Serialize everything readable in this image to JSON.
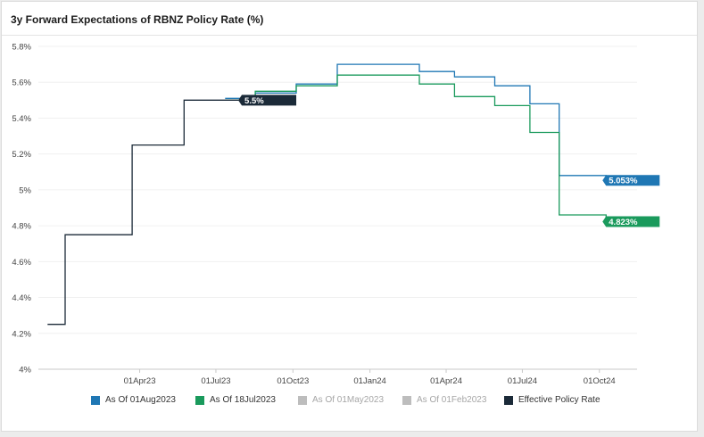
{
  "chart_data": {
    "type": "line",
    "step": true,
    "title": "3y Forward Expectations of RBNZ Policy Rate (%)",
    "xlabel": "",
    "ylabel": "",
    "ylim": [
      4.0,
      5.8
    ],
    "yticks": [
      "5.8%",
      "5.6%",
      "5.4%",
      "5.2%",
      "5%",
      "4.8%",
      "4.6%",
      "4.4%",
      "4.2%",
      "4%"
    ],
    "ytick_values": [
      5.8,
      5.6,
      5.4,
      5.2,
      5.0,
      4.8,
      4.6,
      4.4,
      4.2,
      4.0
    ],
    "xlim": [
      "2022-12-01",
      "2024-11-15"
    ],
    "xticks": [
      "01Apr23",
      "01Jul23",
      "01Oct23",
      "01Jan24",
      "01Apr24",
      "01Jul24",
      "01Oct24"
    ],
    "xtick_dates": [
      "2023-04-01",
      "2023-07-01",
      "2023-10-01",
      "2024-01-01",
      "2024-04-01",
      "2024-07-01",
      "2024-10-01"
    ],
    "grid": "horizontal",
    "series": [
      {
        "name": "As Of 01Aug2023",
        "color": "#1f77b4",
        "visible": true,
        "end_label": "5.053%",
        "points": [
          [
            "2023-07-12",
            5.51
          ],
          [
            "2023-08-17",
            5.54
          ],
          [
            "2023-10-05",
            5.59
          ],
          [
            "2023-11-23",
            5.7
          ],
          [
            "2024-02-29",
            5.66
          ],
          [
            "2024-04-11",
            5.63
          ],
          [
            "2024-05-29",
            5.58
          ],
          [
            "2024-07-10",
            5.48
          ],
          [
            "2024-08-14",
            5.08
          ],
          [
            "2024-10-09",
            5.053
          ],
          [
            "2024-11-12",
            5.053
          ]
        ]
      },
      {
        "name": "As Of 18Jul2023",
        "color": "#1a9a5c",
        "visible": true,
        "end_label": "4.823%",
        "points": [
          [
            "2023-07-12",
            5.5
          ],
          [
            "2023-08-17",
            5.55
          ],
          [
            "2023-10-05",
            5.58
          ],
          [
            "2023-11-23",
            5.64
          ],
          [
            "2024-02-29",
            5.59
          ],
          [
            "2024-04-11",
            5.52
          ],
          [
            "2024-05-29",
            5.47
          ],
          [
            "2024-07-10",
            5.32
          ],
          [
            "2024-08-14",
            4.86
          ],
          [
            "2024-10-09",
            4.823
          ],
          [
            "2024-11-12",
            4.823
          ]
        ]
      },
      {
        "name": "As Of 01May2023",
        "color": "#bdbdbd",
        "visible": false,
        "points": []
      },
      {
        "name": "As Of 01Feb2023",
        "color": "#bdbdbd",
        "visible": false,
        "points": []
      },
      {
        "name": "Effective Policy Rate",
        "color": "#1b2a38",
        "visible": true,
        "end_label": "5.5%",
        "points": [
          [
            "2022-12-12",
            4.25
          ],
          [
            "2023-01-01",
            4.25
          ],
          [
            "2023-01-02",
            4.75
          ],
          [
            "2023-03-22",
            4.75
          ],
          [
            "2023-03-23",
            5.25
          ],
          [
            "2023-05-23",
            5.25
          ],
          [
            "2023-05-24",
            5.5
          ],
          [
            "2023-07-28",
            5.5
          ]
        ]
      }
    ]
  }
}
